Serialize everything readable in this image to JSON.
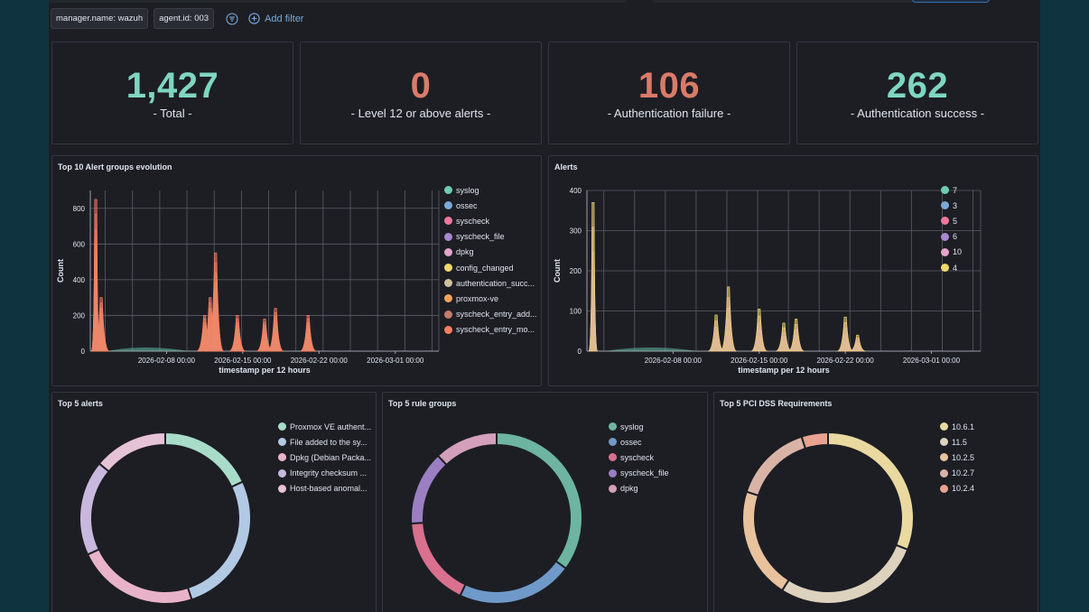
{
  "filters": {
    "pills": [
      "manager.name: wazuh",
      "agent.id: 003"
    ],
    "add_filter_label": "Add filter"
  },
  "metrics": [
    {
      "value": "1,427",
      "label": "- Total -",
      "color": "#7fd6c1"
    },
    {
      "value": "0",
      "label": "- Level 12 or above alerts -",
      "color": "#da7b68"
    },
    {
      "value": "106",
      "label": "- Authentication failure -",
      "color": "#da7b68"
    },
    {
      "value": "262",
      "label": "- Authentication success -",
      "color": "#7fd6c1"
    }
  ],
  "colors": {
    "teal": "#6dccb1",
    "blue": "#79aad9",
    "pink": "#ee789d",
    "purple": "#a987d1",
    "rose": "#e4a6c7",
    "yellow": "#f1d86f",
    "tan": "#d2c0a0",
    "orange": "#f5a35c",
    "brown": "#c47c6c",
    "salmon": "#ff7e62"
  },
  "chart_data": [
    {
      "type": "area",
      "title": "Top 10 Alert groups evolution",
      "xlabel": "timestamp per 12 hours",
      "ylabel": "Count",
      "ylim": [
        0,
        900
      ],
      "yticks": [
        0,
        200,
        400,
        600,
        800
      ],
      "xticks": [
        "2026-02-08 00:00",
        "2026-02-15 00:00",
        "2026-02-22 00:00",
        "2026-03-01 00:00"
      ],
      "legend_position": "right",
      "series": [
        {
          "name": "syslog",
          "color": "#6dccb1"
        },
        {
          "name": "ossec",
          "color": "#79aad9"
        },
        {
          "name": "syscheck",
          "color": "#ee789d"
        },
        {
          "name": "syscheck_file",
          "color": "#a987d1"
        },
        {
          "name": "dpkg",
          "color": "#e4a6c7"
        },
        {
          "name": "config_changed",
          "color": "#f1d86f"
        },
        {
          "name": "authentication_succ...",
          "color": "#d2c0a0"
        },
        {
          "name": "proxmox-ve",
          "color": "#f5a35c"
        },
        {
          "name": "syscheck_entry_add...",
          "color": "#c47c6c"
        },
        {
          "name": "syscheck_entry_mo...",
          "color": "#ff7e62"
        }
      ],
      "peaks": [
        {
          "x": "2026-02-01 12:00",
          "y": 850
        },
        {
          "x": "2026-02-02 00:00",
          "y": 300
        },
        {
          "x": "2026-02-11 12:00",
          "y": 200
        },
        {
          "x": "2026-02-12 00:00",
          "y": 300
        },
        {
          "x": "2026-02-12 12:00",
          "y": 550
        },
        {
          "x": "2026-02-14 12:00",
          "y": 200
        },
        {
          "x": "2026-02-17 00:00",
          "y": 180
        },
        {
          "x": "2026-02-18 00:00",
          "y": 240
        },
        {
          "x": "2026-02-21 00:00",
          "y": 200
        }
      ]
    },
    {
      "type": "area",
      "title": "Alerts",
      "xlabel": "timestamp per 12 hours",
      "ylabel": "Count",
      "ylim": [
        0,
        400
      ],
      "yticks": [
        0,
        100,
        200,
        300,
        400
      ],
      "xticks": [
        "2026-02-08 00:00",
        "2026-02-15 00:00",
        "2026-02-22 00:00",
        "2026-03-01 00:00"
      ],
      "legend_position": "right",
      "series": [
        {
          "name": "7",
          "color": "#6dccb1"
        },
        {
          "name": "3",
          "color": "#79aad9"
        },
        {
          "name": "5",
          "color": "#ee789d"
        },
        {
          "name": "6",
          "color": "#a987d1"
        },
        {
          "name": "10",
          "color": "#e4a6c7"
        },
        {
          "name": "4",
          "color": "#f1d86f"
        }
      ],
      "peaks": [
        {
          "x": "2026-02-01 12:00",
          "y": 370
        },
        {
          "x": "2026-02-11 12:00",
          "y": 90
        },
        {
          "x": "2026-02-12 12:00",
          "y": 160
        },
        {
          "x": "2026-02-15 00:00",
          "y": 105
        },
        {
          "x": "2026-02-17 00:00",
          "y": 70
        },
        {
          "x": "2026-02-18 00:00",
          "y": 80
        },
        {
          "x": "2026-02-22 00:00",
          "y": 85
        },
        {
          "x": "2026-02-23 00:00",
          "y": 40
        }
      ]
    },
    {
      "type": "pie",
      "title": "Top 5 alerts",
      "labels": [
        "Proxmox VE authent...",
        "File added to the sy...",
        "Dpkg (Debian Packa...",
        "Integrity checksum ...",
        "Host-based anomal..."
      ],
      "values": [
        18,
        27,
        23,
        18,
        14
      ],
      "colors": [
        "#a8dcc9",
        "#b2c9e3",
        "#e8b3c8",
        "#c9b8dd",
        "#e6c2d7"
      ]
    },
    {
      "type": "pie",
      "title": "Top 5 rule groups",
      "labels": [
        "syslog",
        "ossec",
        "syscheck",
        "syscheck_file",
        "dpkg"
      ],
      "values": [
        35,
        22,
        17,
        14,
        12
      ],
      "colors": [
        "#6db5a1",
        "#6f99c9",
        "#d8708e",
        "#9b7fc2",
        "#d49fbb"
      ]
    },
    {
      "type": "pie",
      "title": "Top 5 PCI DSS Requirements",
      "labels": [
        "10.6.1",
        "11.5",
        "10.2.5",
        "10.2.7",
        "10.2.4"
      ],
      "values": [
        31,
        28,
        21,
        15,
        5
      ],
      "colors": [
        "#e9d9a0",
        "#dcd2bd",
        "#e8c19d",
        "#d9b4a6",
        "#e9a28f"
      ]
    }
  ]
}
